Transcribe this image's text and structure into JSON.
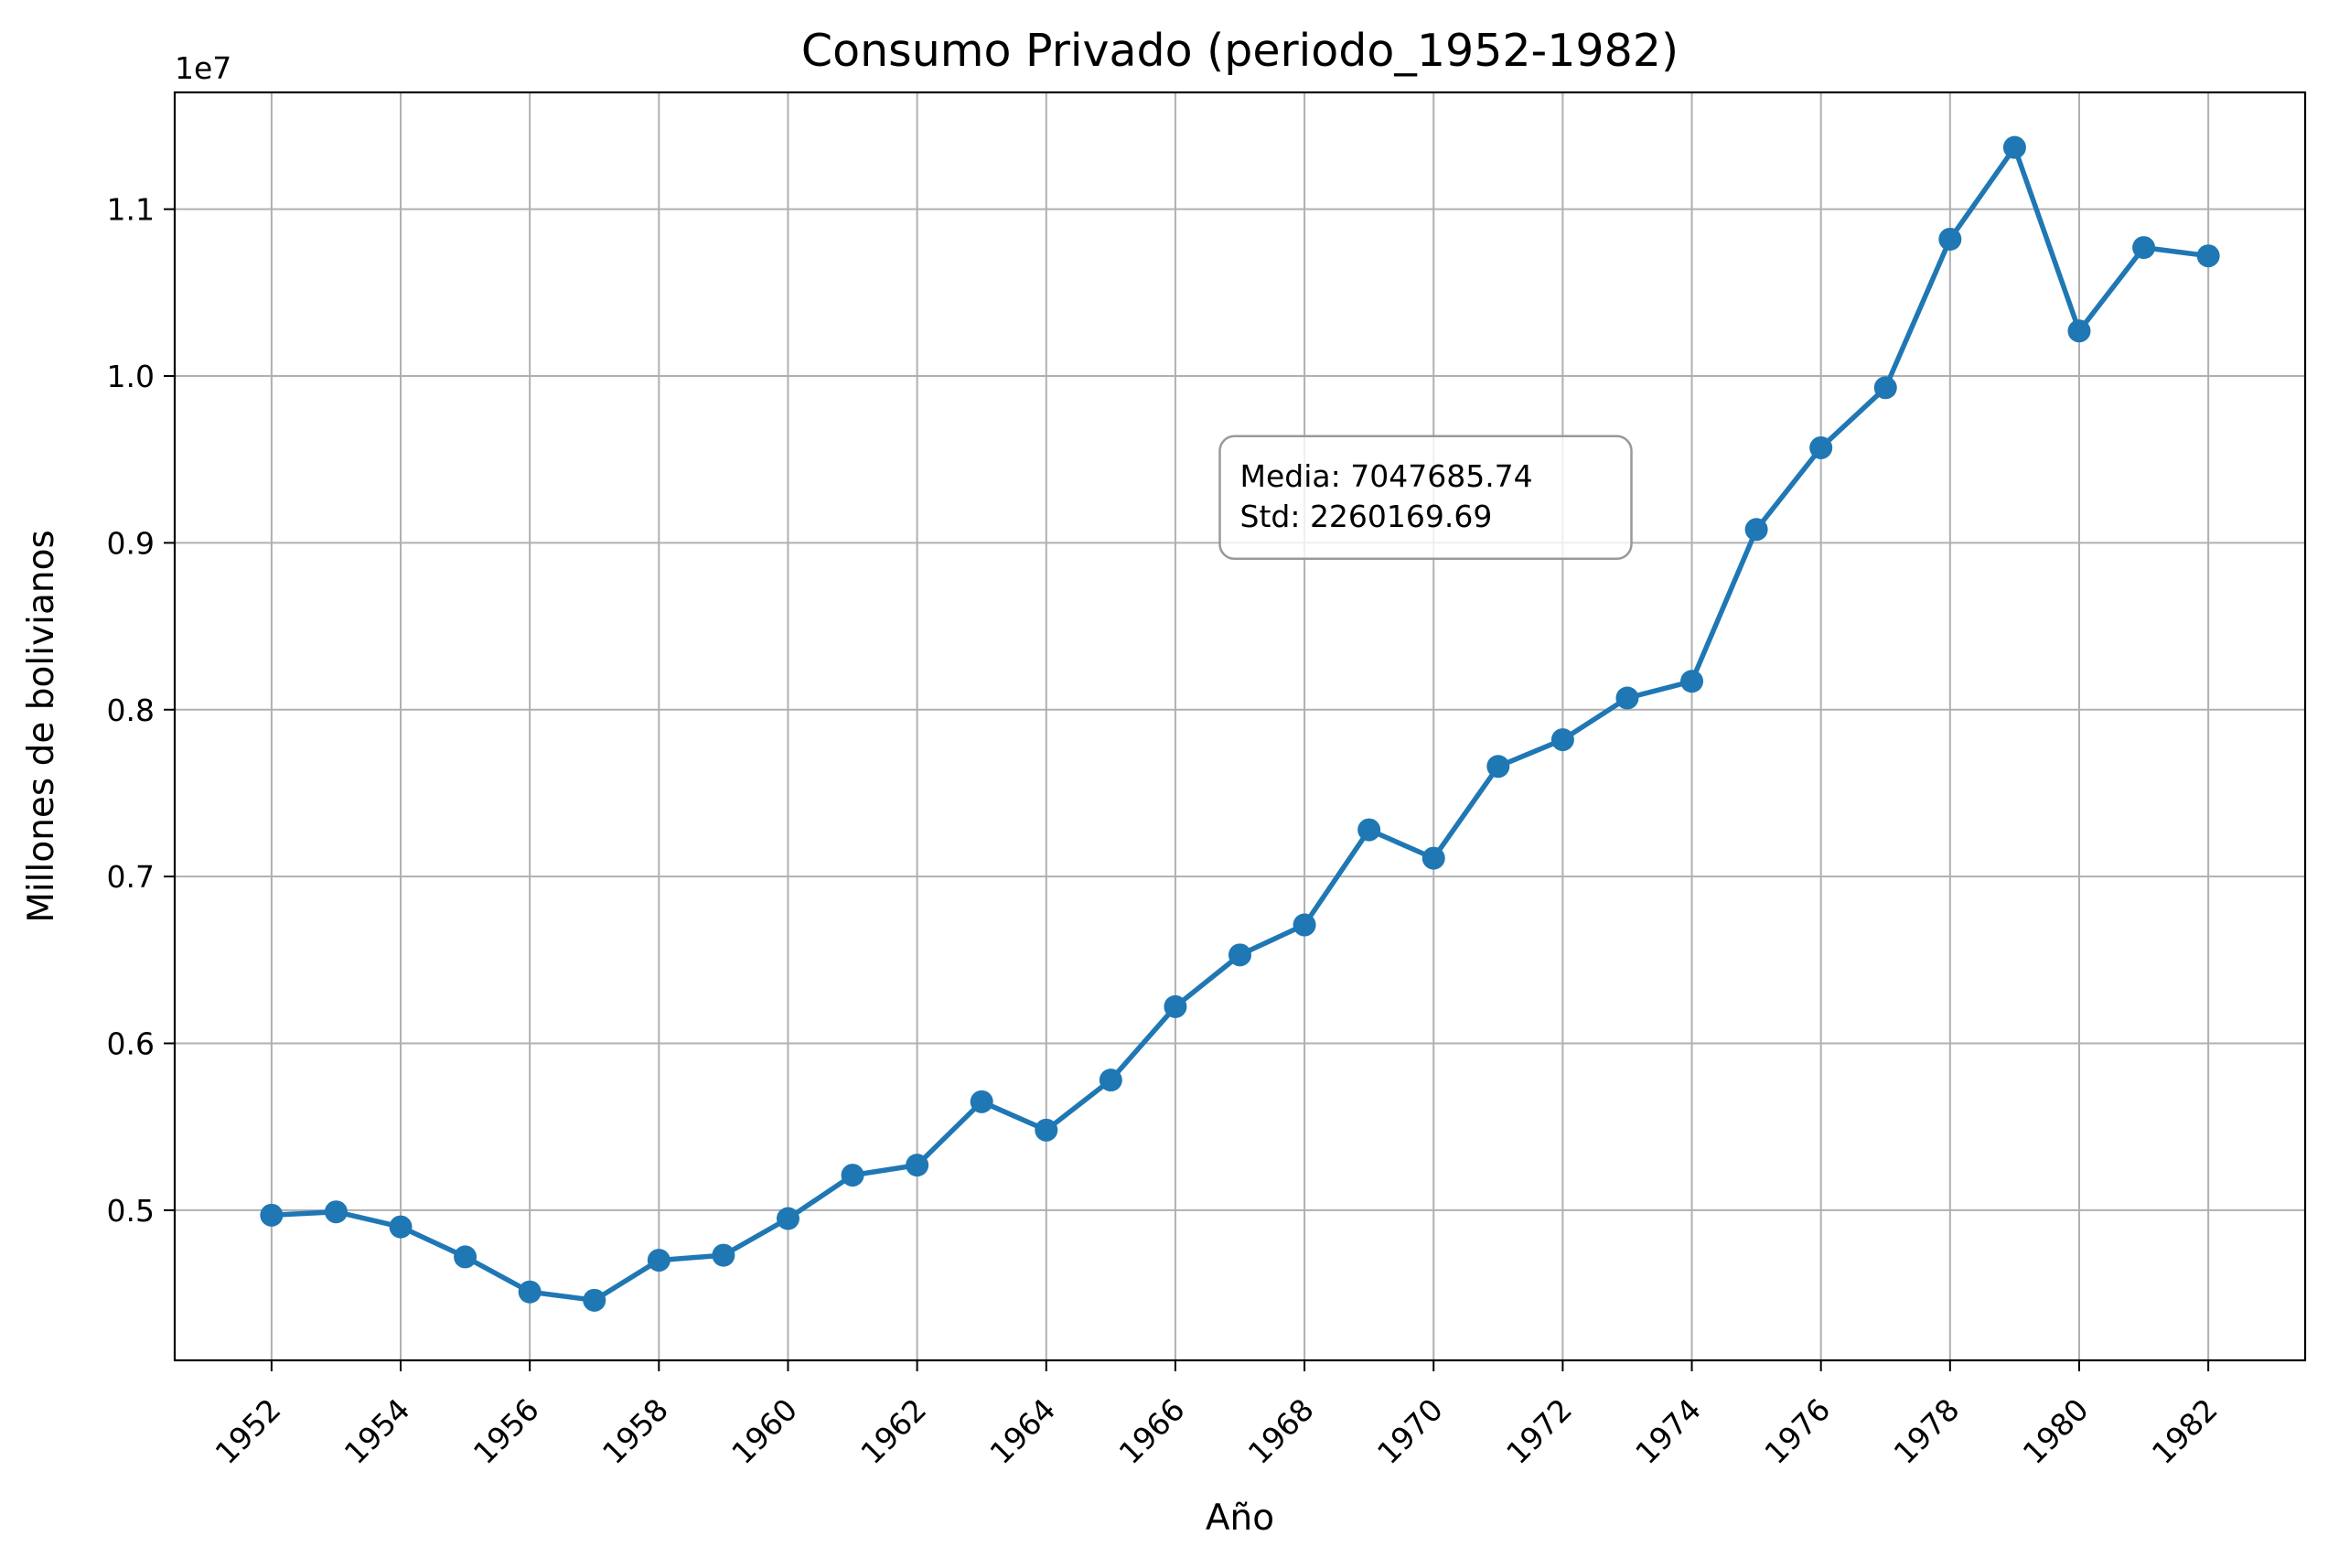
{
  "chart_data": {
    "type": "line",
    "title": "Consumo Privado (periodo_1952-1982)",
    "xlabel": "Año",
    "ylabel": "Millones de bolivianos",
    "y_offset_label": "1e7",
    "grid": true,
    "xlim": [
      1950.5,
      1983.5
    ],
    "ylim": [
      4100000,
      11700000
    ],
    "x_ticks": [
      1952,
      1954,
      1956,
      1958,
      1960,
      1962,
      1964,
      1966,
      1968,
      1970,
      1972,
      1974,
      1976,
      1978,
      1980,
      1982
    ],
    "x_tick_labels": [
      "1952",
      "1954",
      "1956",
      "1958",
      "1960",
      "1962",
      "1964",
      "1966",
      "1968",
      "1970",
      "1972",
      "1974",
      "1976",
      "1978",
      "1980",
      "1982"
    ],
    "y_ticks": [
      5000000,
      6000000,
      7000000,
      8000000,
      9000000,
      10000000,
      11000000
    ],
    "y_tick_labels": [
      "0.5",
      "0.6",
      "0.7",
      "0.8",
      "0.9",
      "1.0",
      "1.1"
    ],
    "series": [
      {
        "color": "#1f77b4",
        "marker": "circle",
        "x": [
          1952,
          1953,
          1954,
          1955,
          1956,
          1957,
          1958,
          1959,
          1960,
          1961,
          1962,
          1963,
          1964,
          1965,
          1966,
          1967,
          1968,
          1969,
          1970,
          1971,
          1972,
          1973,
          1974,
          1975,
          1976,
          1977,
          1978,
          1979,
          1980,
          1981,
          1982
        ],
        "values": [
          4970000,
          4990000,
          4900000,
          4720000,
          4510000,
          4460000,
          4700000,
          4730000,
          4950000,
          5210000,
          5270000,
          5650000,
          5480000,
          5780000,
          6220000,
          6530000,
          6710000,
          7280000,
          7110000,
          7660000,
          7820000,
          8070000,
          8170000,
          9080000,
          9570000,
          9930000,
          10820000,
          11370000,
          10270000,
          10770000,
          10720000
        ]
      }
    ],
    "annotation": {
      "lines": [
        "Media: 7047685.74",
        "Std: 2260169.69"
      ],
      "anchor": [
        1967.0,
        9420000
      ]
    }
  }
}
